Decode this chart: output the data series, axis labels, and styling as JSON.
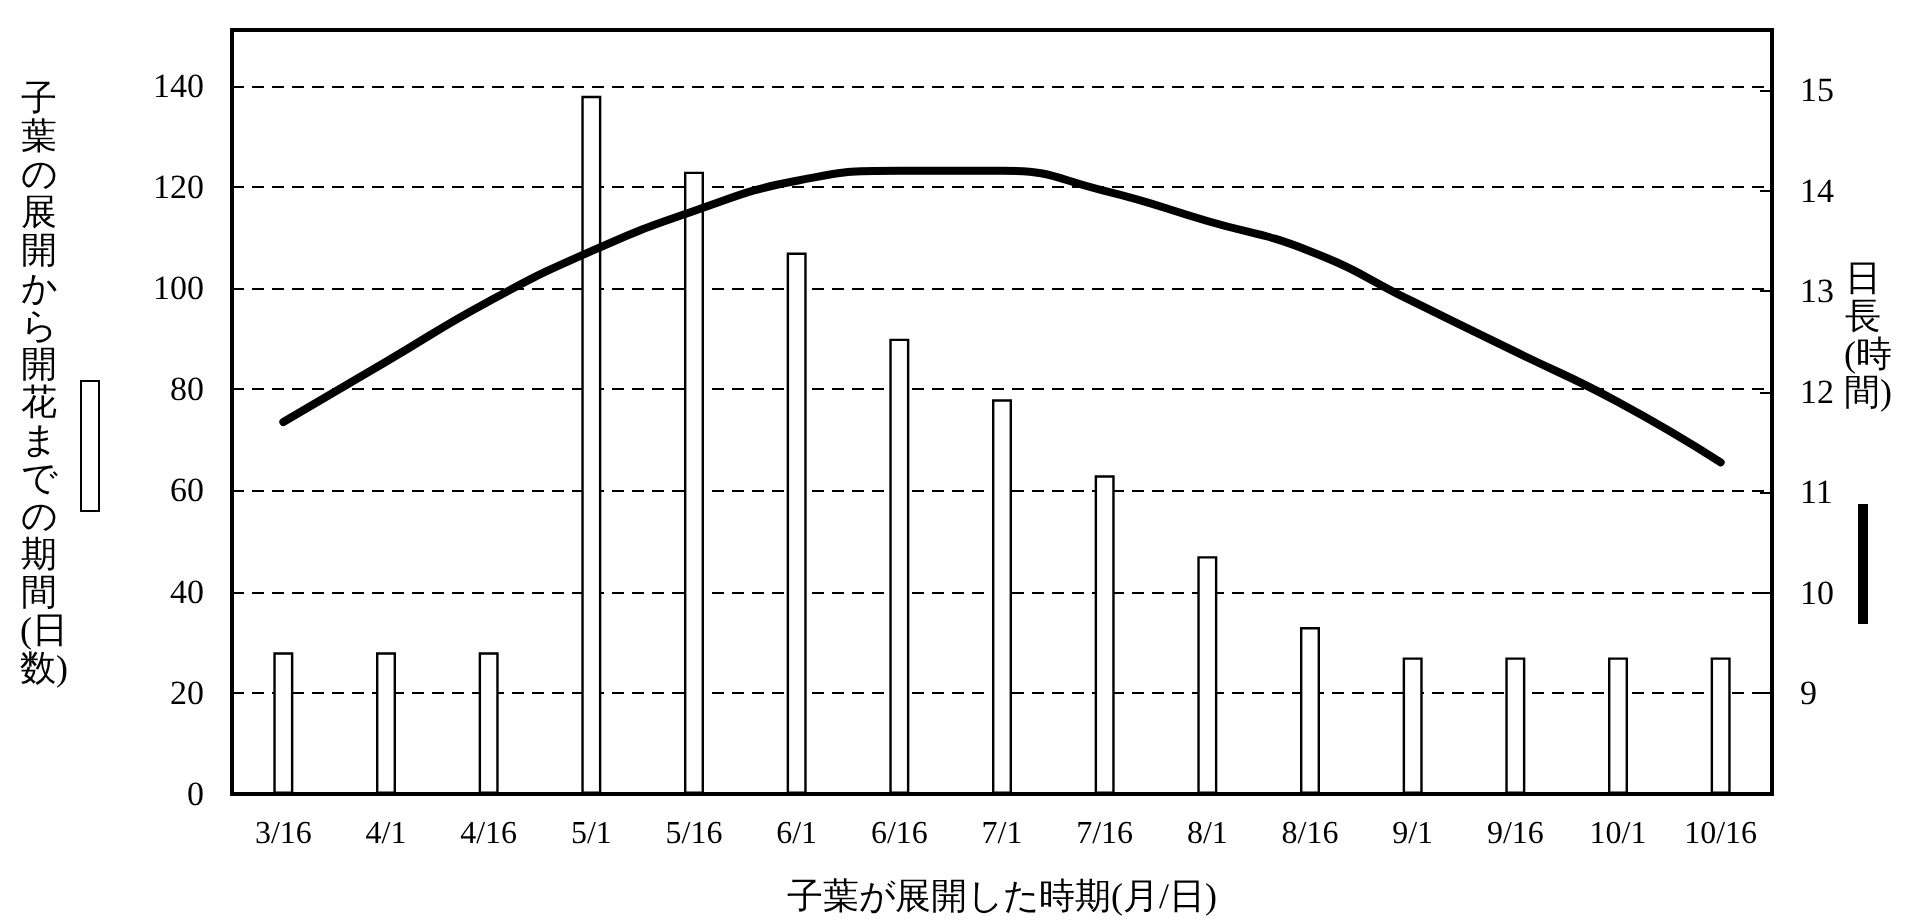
{
  "chart_data": {
    "type": "bar",
    "xlabel": "子葉が展開した時期(月/日)",
    "ylabel": "子葉の展開から開花までの期間(日数)",
    "y2label": "日長(時間)",
    "categories": [
      "3/16",
      "4/1",
      "4/16",
      "5/1",
      "5/16",
      "6/1",
      "6/16",
      "7/1",
      "7/16",
      "8/1",
      "8/16",
      "9/1",
      "9/16",
      "10/1",
      "10/16"
    ],
    "series": [
      {
        "color": "#ffffff",
        "values": [
          28,
          28,
          28,
          138,
          123,
          107,
          90,
          78,
          63,
          47,
          33,
          27,
          27,
          27,
          27
        ]
      },
      {
        "type": "line",
        "axis": "y2",
        "color": "#000000",
        "marker": "none",
        "line_style": "solid",
        "values": [
          11.7,
          12.3,
          12.9,
          13.4,
          13.8,
          14.1,
          14.2,
          14.2,
          14.0,
          13.7,
          13.4,
          12.9,
          12.4,
          11.9,
          11.3
        ]
      }
    ],
    "ylim": [
      0,
      151
    ],
    "yticks": [
      0,
      20,
      40,
      60,
      80,
      100,
      120,
      140
    ],
    "y2lim": [
      8,
      15.6
    ],
    "y2ticks": [
      9,
      10,
      11,
      12,
      13,
      14,
      15
    ],
    "grid": "y"
  }
}
